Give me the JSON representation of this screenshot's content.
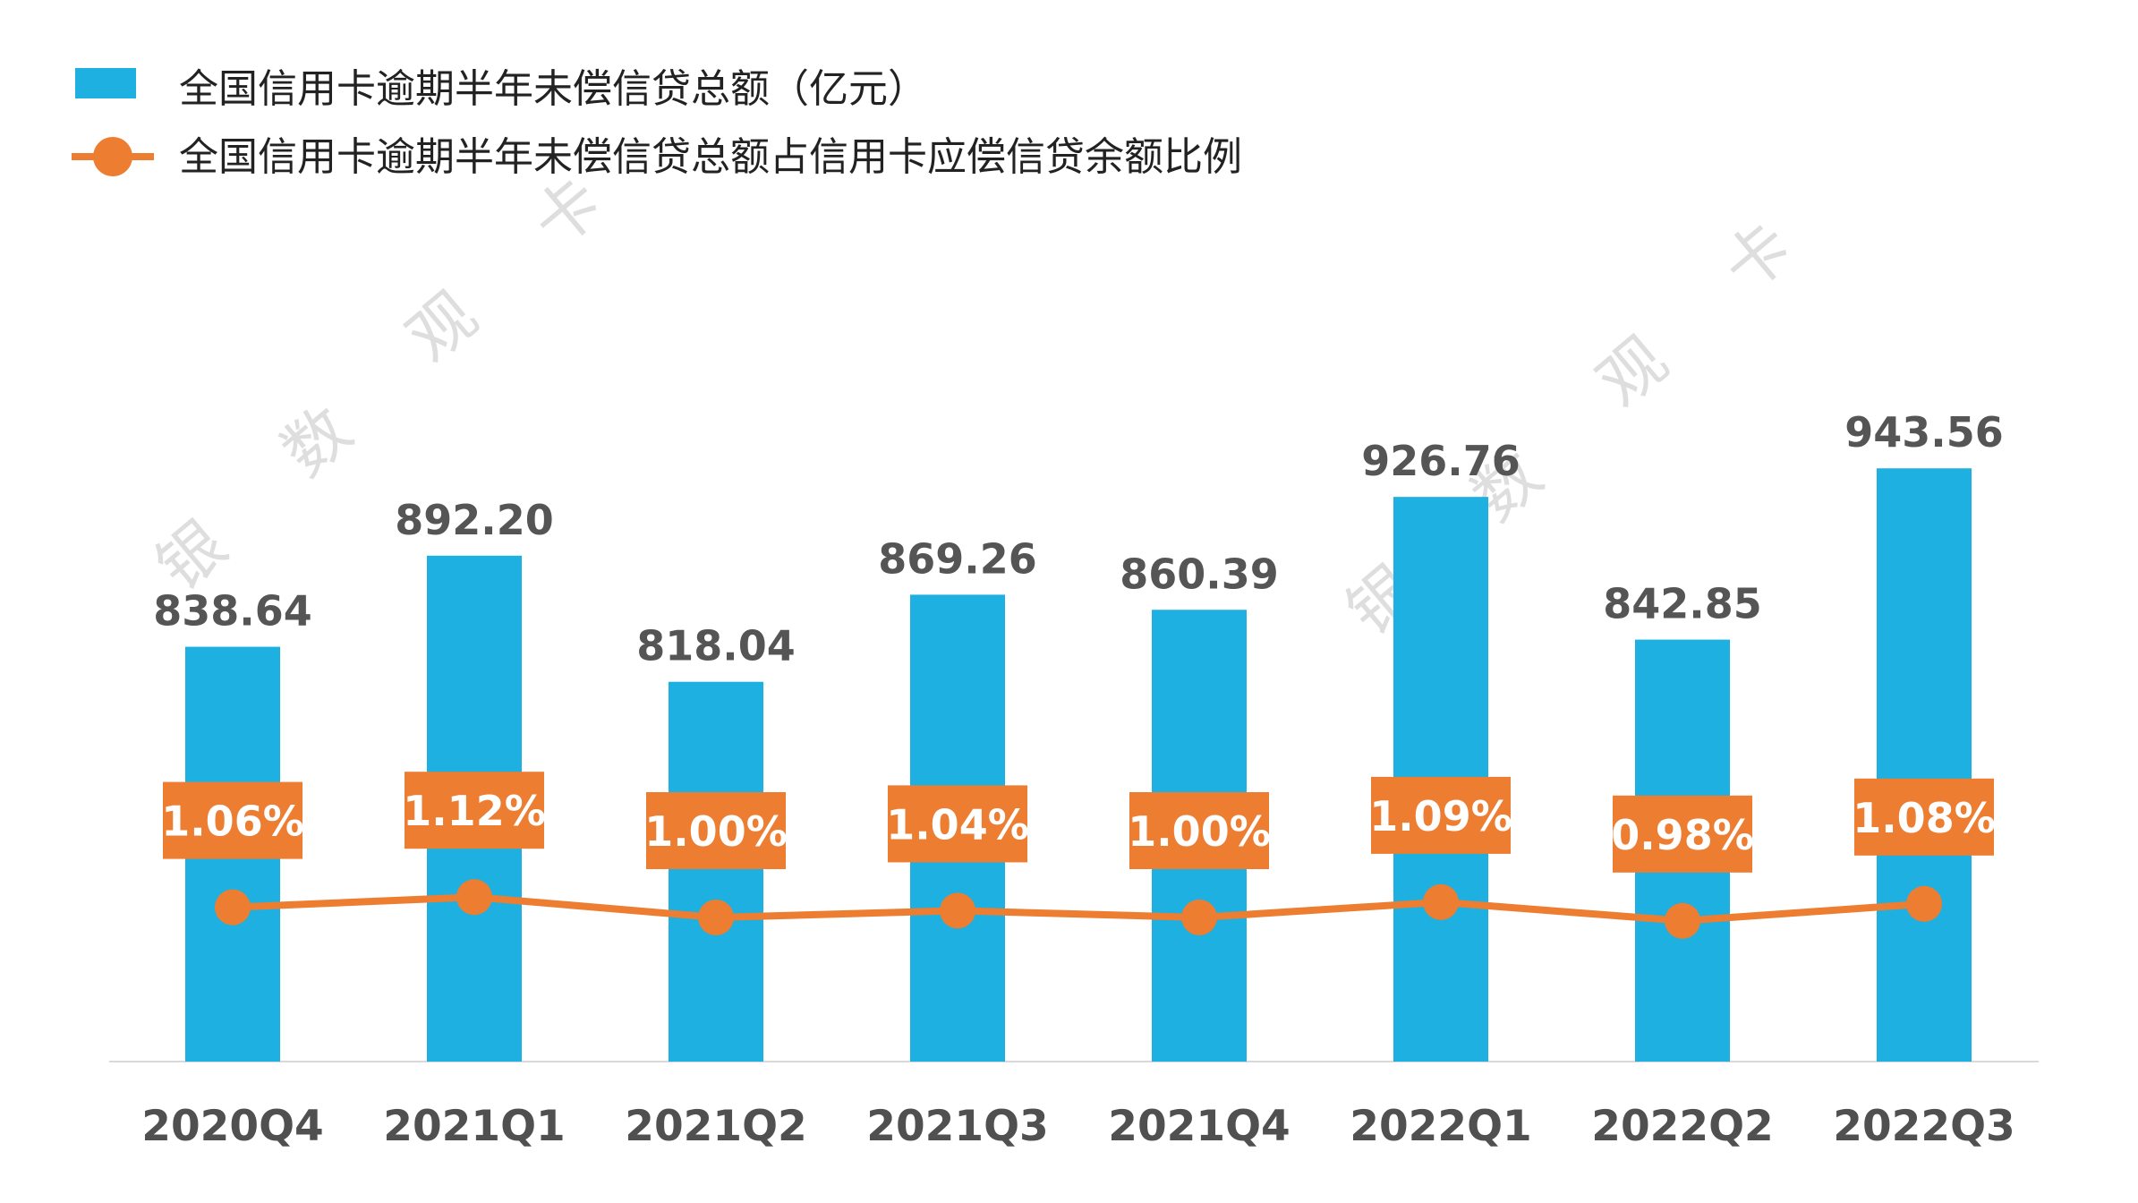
{
  "colors": {
    "bar": "#1DB0E0",
    "line": "#ED7D31",
    "axis": "#D9D9D9"
  },
  "legend": {
    "bar_label": "全国信用卡逾期半年未偿信贷总额（亿元）",
    "line_label": "全国信用卡逾期半年未偿信贷总额占信用卡应偿信贷余额比例"
  },
  "watermark": {
    "chars": [
      "银",
      "数",
      "观",
      "卡"
    ]
  },
  "chart_data": {
    "type": "bar",
    "categories": [
      "2020Q4",
      "2021Q1",
      "2021Q2",
      "2021Q3",
      "2021Q4",
      "2022Q1",
      "2022Q2",
      "2022Q3"
    ],
    "series": [
      {
        "name": "全国信用卡逾期半年未偿信贷总额（亿元）",
        "type": "bar",
        "values": [
          838.64,
          892.2,
          818.04,
          869.26,
          860.39,
          926.76,
          842.85,
          943.56
        ],
        "labels": [
          "838.64",
          "892.20",
          "818.04",
          "869.26",
          "860.39",
          "926.76",
          "842.85",
          "943.56"
        ]
      },
      {
        "name": "全国信用卡逾期半年未偿信贷总额占信用卡应偿信贷余额比例",
        "type": "line",
        "values": [
          1.06,
          1.12,
          1.0,
          1.04,
          1.0,
          1.09,
          0.98,
          1.08
        ],
        "labels": [
          "1.06%",
          "1.12%",
          "1.00%",
          "1.04%",
          "1.00%",
          "1.09%",
          "0.98%",
          "1.08%"
        ]
      }
    ],
    "legend_position": "top-left",
    "grid": false
  }
}
